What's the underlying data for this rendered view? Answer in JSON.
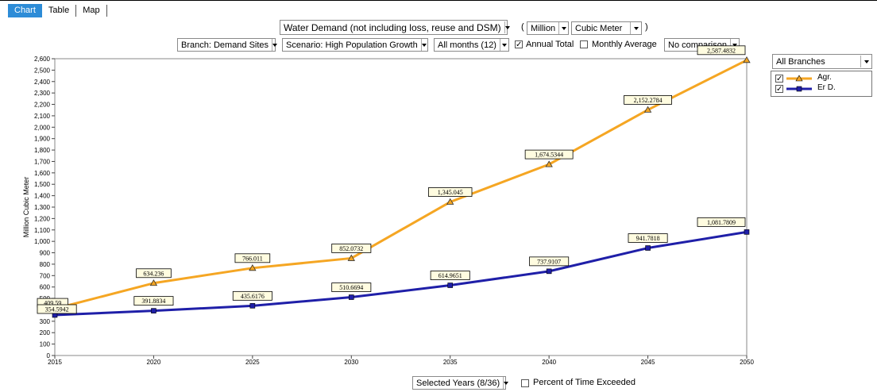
{
  "tabs": [
    {
      "label": "Chart",
      "active": true
    },
    {
      "label": "Table",
      "active": false
    },
    {
      "label": "Map",
      "active": false
    }
  ],
  "toolbar": {
    "variable": "Water Demand (not including loss, reuse and DSM)",
    "open_paren": "(",
    "unit_scale": "Million",
    "unit": "Cubic Meter",
    "close_paren": ")",
    "branch": "Branch: Demand Sites",
    "scenario": "Scenario: High Population Growth",
    "months": "All months (12)",
    "annual_total_label": "Annual Total",
    "annual_total_checked": true,
    "monthly_average_label": "Monthly Average",
    "monthly_average_checked": false,
    "comparison": "No comparison"
  },
  "branches_select": "All Branches",
  "bottom": {
    "years_select": "Selected Years (8/36)",
    "percent_exceeded_label": "Percent of Time Exceeded",
    "percent_exceeded_checked": false
  },
  "colors": {
    "tab_active": "#2d8cd7",
    "agr": "#f5a623",
    "erd": "#1f1fa8"
  },
  "chart_data": {
    "type": "line",
    "ylabel": "Million Cubic Meter",
    "xlabel": "",
    "x": [
      2015,
      2020,
      2025,
      2030,
      2035,
      2040,
      2045,
      2050
    ],
    "ylim": [
      0,
      2600
    ],
    "yticks": [
      0,
      100,
      200,
      300,
      400,
      500,
      600,
      700,
      800,
      900,
      1000,
      1100,
      1200,
      1300,
      1400,
      1500,
      1600,
      1700,
      1800,
      1900,
      2000,
      2100,
      2200,
      2300,
      2400,
      2500,
      2600
    ],
    "ytick_labels": [
      "0",
      "100",
      "200",
      "300",
      "400",
      "500",
      "600",
      "700",
      "800",
      "900",
      "1,000",
      "1,100",
      "1,200",
      "1,300",
      "1,400",
      "1,500",
      "1,600",
      "1,700",
      "1,800",
      "1,900",
      "2,000",
      "2,100",
      "2,200",
      "2,300",
      "2,400",
      "2,500",
      "2,600"
    ],
    "legend_position": "right",
    "series": [
      {
        "name": "Agr.",
        "color": "#f5a623",
        "marker": "triangle",
        "values": [
          409.59,
          634.236,
          766.011,
          852.0732,
          1345.045,
          1674.5344,
          2152.2784,
          2587.4832
        ],
        "labels": [
          "409.59",
          "634.236",
          "766.011",
          "852.0732",
          "1,345.045",
          "1,674.5344",
          "2,152.2784",
          "2,587.4832"
        ]
      },
      {
        "name": "Er D.",
        "color": "#1f1fa8",
        "marker": "square",
        "values": [
          354.5942,
          391.8834,
          435.6176,
          510.6694,
          614.9651,
          737.9107,
          941.7818,
          1081.7809
        ],
        "labels": [
          "354.5942",
          "391.8834",
          "435.6176",
          "510.6694",
          "614.9651",
          "737.9107",
          "941.7818",
          "1,081.7809"
        ]
      }
    ]
  }
}
